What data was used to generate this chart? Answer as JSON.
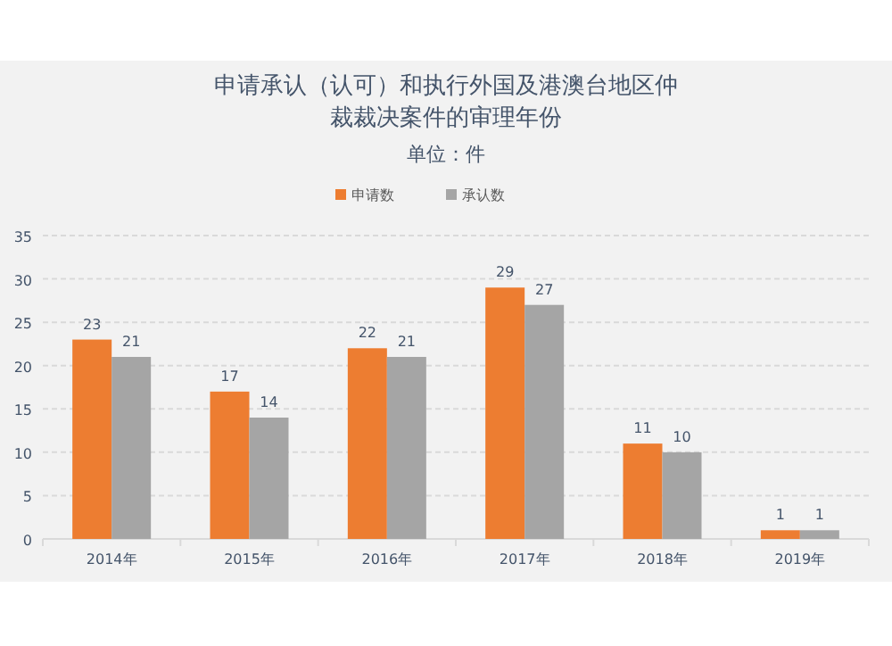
{
  "chart_data": {
    "type": "bar",
    "title": "申请承认（认可）和执行外国及港澳台地区仲裁裁决案件的审理年份",
    "subtitle": "单位：件",
    "categories": [
      "2014年",
      "2015年",
      "2016年",
      "2017年",
      "2018年",
      "2019年"
    ],
    "series": [
      {
        "name": "申请数",
        "color": "#ed7d31",
        "values": [
          23,
          17,
          22,
          29,
          11,
          1
        ]
      },
      {
        "name": "承认数",
        "color": "#a5a5a5",
        "values": [
          21,
          14,
          21,
          27,
          10,
          1
        ]
      }
    ],
    "ylim": [
      0,
      35
    ],
    "yticks": [
      0,
      5,
      10,
      15,
      20,
      25,
      30,
      35
    ],
    "grid": "y",
    "legend": "top",
    "data_labels": true
  }
}
